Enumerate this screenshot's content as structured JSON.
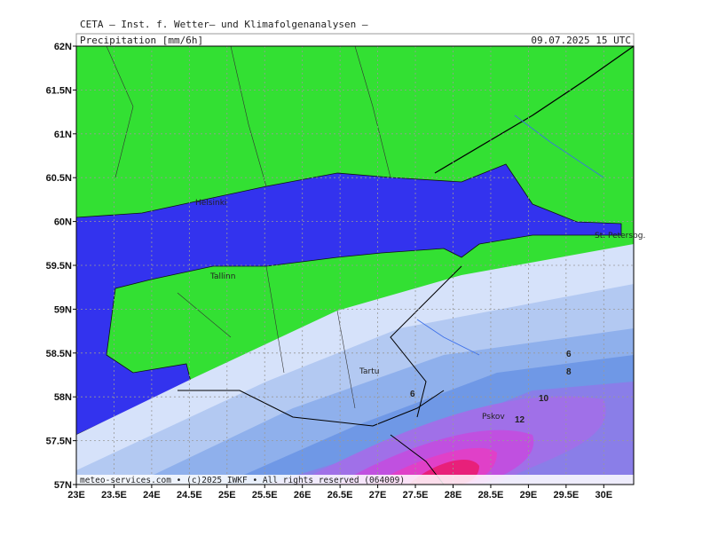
{
  "header": {
    "institute": "CETA — Inst. f. Wetter— und Klimafolgenanalysen —",
    "field": "Precipitation [mm/6h]",
    "time": "09.07.2025 15 UTC"
  },
  "axes": {
    "lat_labels": [
      "62N",
      "61.5N",
      "61N",
      "60.5N",
      "60N",
      "59.5N",
      "59N",
      "58.5N",
      "58N",
      "57.5N",
      "57N"
    ],
    "lon_labels": [
      "23E",
      "23.5E",
      "24E",
      "24.5E",
      "25E",
      "25.5E",
      "26E",
      "26.5E",
      "27E",
      "27.5E",
      "28E",
      "28.5E",
      "29E",
      "29.5E",
      "30E"
    ]
  },
  "places": {
    "helsinki": "Helsinki",
    "tallinn": "Tallinn",
    "tartu": "Tartu",
    "pskov": "Pskov",
    "stpetersburg": "St. Petersbg."
  },
  "contour_labels": [
    "6",
    "8",
    "10",
    "6",
    "12"
  ],
  "footer": "meteo-services.com • (c)2025 IWKF • All rights reserved (064009)"
}
